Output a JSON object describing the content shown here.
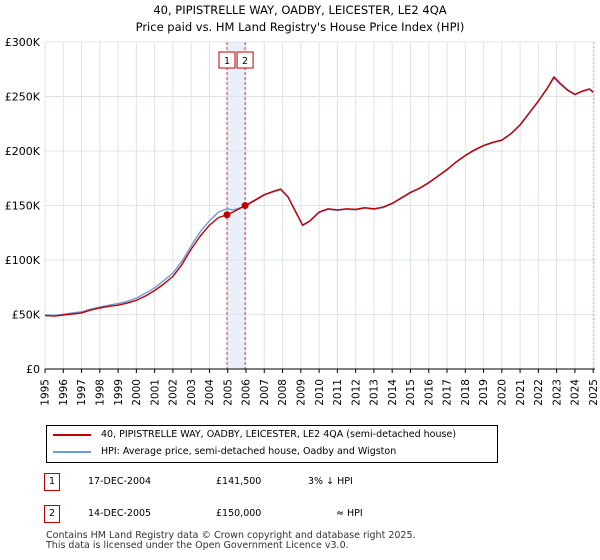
{
  "chart_data": {
    "type": "line",
    "title": "40, PIPISTRELLE WAY, OADBY, LEICESTER, LE2 4QA",
    "subtitle": "Price paid vs. HM Land Registry's House Price Index (HPI)",
    "x_ticks": [
      "1995",
      "1996",
      "1997",
      "1998",
      "1999",
      "2000",
      "2001",
      "2002",
      "2003",
      "2004",
      "2005",
      "2006",
      "2007",
      "2008",
      "2009",
      "2010",
      "2011",
      "2012",
      "2013",
      "2014",
      "2015",
      "2016",
      "2017",
      "2018",
      "2019",
      "2020",
      "2021",
      "2022",
      "2023",
      "2024",
      "2025"
    ],
    "y_ticks": [
      {
        "value": 0,
        "label": "£0"
      },
      {
        "value": 50000,
        "label": "£50K"
      },
      {
        "value": 100000,
        "label": "£100K"
      },
      {
        "value": 150000,
        "label": "£150K"
      },
      {
        "value": 200000,
        "label": "£200K"
      },
      {
        "value": 250000,
        "label": "£250K"
      },
      {
        "value": 300000,
        "label": "£300K"
      }
    ],
    "xlim": [
      1995,
      2025.1
    ],
    "ylim": [
      0,
      300000
    ],
    "grid": true,
    "series": [
      {
        "name": "40, PIPISTRELLE WAY, OADBY, LEICESTER, LE2 4QA (semi-detached house)",
        "color": "#c00000",
        "points": [
          [
            1995.0,
            49000
          ],
          [
            1995.5,
            48500
          ],
          [
            1996.0,
            49500
          ],
          [
            1996.5,
            50500
          ],
          [
            1997.0,
            51500
          ],
          [
            1997.5,
            54000
          ],
          [
            1998.0,
            56000
          ],
          [
            1998.5,
            57500
          ],
          [
            1999.0,
            58500
          ],
          [
            1999.5,
            60500
          ],
          [
            2000.0,
            63000
          ],
          [
            2000.5,
            67000
          ],
          [
            2001.0,
            72000
          ],
          [
            2001.5,
            78000
          ],
          [
            2002.0,
            85000
          ],
          [
            2002.5,
            96000
          ],
          [
            2003.0,
            110000
          ],
          [
            2003.5,
            122000
          ],
          [
            2004.0,
            132000
          ],
          [
            2004.5,
            139000
          ],
          [
            2004.96,
            141500
          ],
          [
            2005.3,
            144000
          ],
          [
            2005.95,
            150000
          ],
          [
            2006.5,
            155000
          ],
          [
            2007.0,
            160000
          ],
          [
            2007.5,
            163000
          ],
          [
            2007.9,
            165000
          ],
          [
            2008.3,
            158000
          ],
          [
            2008.7,
            145000
          ],
          [
            2009.1,
            132000
          ],
          [
            2009.5,
            136000
          ],
          [
            2010.0,
            144000
          ],
          [
            2010.5,
            147000
          ],
          [
            2011.0,
            146000
          ],
          [
            2011.5,
            147000
          ],
          [
            2012.0,
            146500
          ],
          [
            2012.5,
            148000
          ],
          [
            2013.0,
            147000
          ],
          [
            2013.5,
            148500
          ],
          [
            2014.0,
            152000
          ],
          [
            2014.5,
            157000
          ],
          [
            2015.0,
            162000
          ],
          [
            2015.5,
            166000
          ],
          [
            2016.0,
            171000
          ],
          [
            2016.5,
            177000
          ],
          [
            2017.0,
            183000
          ],
          [
            2017.5,
            190000
          ],
          [
            2018.0,
            196000
          ],
          [
            2018.5,
            201000
          ],
          [
            2019.0,
            205000
          ],
          [
            2019.5,
            208000
          ],
          [
            2020.0,
            210000
          ],
          [
            2020.5,
            216000
          ],
          [
            2021.0,
            224000
          ],
          [
            2021.5,
            235000
          ],
          [
            2022.0,
            246000
          ],
          [
            2022.5,
            258000
          ],
          [
            2022.85,
            268000
          ],
          [
            2023.2,
            262000
          ],
          [
            2023.6,
            256000
          ],
          [
            2024.0,
            252000
          ],
          [
            2024.4,
            255000
          ],
          [
            2024.8,
            257000
          ],
          [
            2025.0,
            254000
          ]
        ]
      },
      {
        "name": "HPI: Average price, semi-detached house, Oadby and Wigston",
        "color": "#6e9bd6",
        "points": [
          [
            1995.0,
            49500
          ],
          [
            1995.5,
            49200
          ],
          [
            1996.0,
            50200
          ],
          [
            1996.5,
            51500
          ],
          [
            1997.0,
            52500
          ],
          [
            1997.5,
            55000
          ],
          [
            1998.0,
            57000
          ],
          [
            1998.5,
            58500
          ],
          [
            1999.0,
            60000
          ],
          [
            1999.5,
            62000
          ],
          [
            2000.0,
            65000
          ],
          [
            2000.5,
            69500
          ],
          [
            2001.0,
            74500
          ],
          [
            2001.5,
            81000
          ],
          [
            2002.0,
            88000
          ],
          [
            2002.5,
            99000
          ],
          [
            2003.0,
            113000
          ],
          [
            2003.5,
            126000
          ],
          [
            2004.0,
            136000
          ],
          [
            2004.5,
            144000
          ],
          [
            2004.96,
            147000
          ],
          [
            2005.3,
            146000
          ],
          [
            2005.95,
            149000
          ],
          [
            2006.5,
            154500
          ],
          [
            2007.0,
            159500
          ],
          [
            2007.5,
            162500
          ],
          [
            2007.9,
            164500
          ],
          [
            2008.3,
            157500
          ],
          [
            2008.7,
            144500
          ],
          [
            2009.1,
            131500
          ],
          [
            2009.5,
            135500
          ],
          [
            2010.0,
            143500
          ],
          [
            2010.5,
            146500
          ],
          [
            2011.0,
            145500
          ],
          [
            2011.5,
            146500
          ],
          [
            2012.0,
            146000
          ],
          [
            2012.5,
            147500
          ],
          [
            2013.0,
            146500
          ],
          [
            2013.5,
            148000
          ],
          [
            2014.0,
            151500
          ],
          [
            2014.5,
            156500
          ],
          [
            2015.0,
            161500
          ],
          [
            2015.5,
            165500
          ],
          [
            2016.0,
            170500
          ],
          [
            2016.5,
            176500
          ],
          [
            2017.0,
            182500
          ],
          [
            2017.5,
            189500
          ],
          [
            2018.0,
            195500
          ],
          [
            2018.5,
            200500
          ],
          [
            2019.0,
            204500
          ],
          [
            2019.5,
            207500
          ],
          [
            2020.0,
            209500
          ],
          [
            2020.5,
            215500
          ],
          [
            2021.0,
            223500
          ],
          [
            2021.5,
            234500
          ],
          [
            2022.0,
            245500
          ],
          [
            2022.5,
            257500
          ],
          [
            2022.85,
            267000
          ],
          [
            2023.2,
            261000
          ],
          [
            2023.6,
            255500
          ],
          [
            2024.0,
            251500
          ],
          [
            2024.4,
            254500
          ],
          [
            2024.8,
            256500
          ],
          [
            2025.0,
            253500
          ]
        ]
      }
    ],
    "sales": [
      {
        "id": "1",
        "x": 2004.96,
        "price": 141500
      },
      {
        "id": "2",
        "x": 2005.95,
        "price": 150000
      }
    ],
    "colors": {
      "grid": "#dde3ec",
      "plot_bg": "#ffffff",
      "highlight": "#dbe6f7",
      "marker_line": "#c00000"
    }
  },
  "legend": {
    "property_label": "40, PIPISTRELLE WAY, OADBY, LEICESTER, LE2 4QA (semi-detached house)",
    "hpi_label": "HPI: Average price, semi-detached house, Oadby and Wigston"
  },
  "sales_table": [
    {
      "id": "1",
      "date": "17-DEC-2004",
      "price": "£141,500",
      "hpi": "3% ↓ HPI"
    },
    {
      "id": "2",
      "date": "14-DEC-2005",
      "price": "£150,000",
      "hpi": "≈ HPI"
    }
  ],
  "footer": {
    "line1": "Contains HM Land Registry data © Crown copyright and database right 2025.",
    "line2": "This data is licensed under the Open Government Licence v3.0."
  }
}
